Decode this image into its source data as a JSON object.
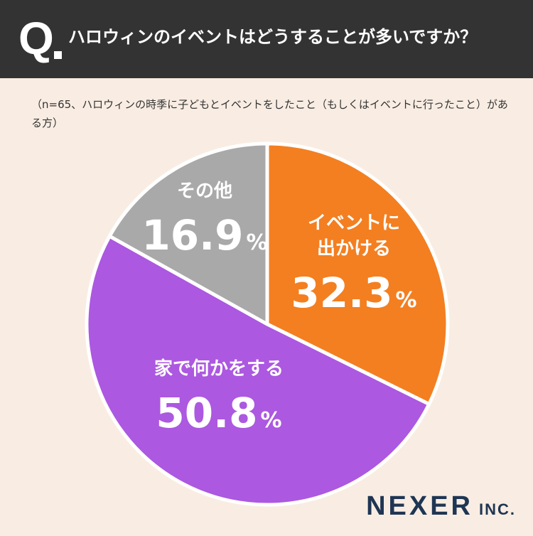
{
  "header": {
    "q_label": "Q",
    "question": "ハロウィンのイベントはどうすることが多いですか？"
  },
  "note": "（n=65、ハロウィンの時季に子どもとイベントをしたこと（もしくはイベントに行ったこと）がある方）",
  "chart_data": {
    "type": "pie",
    "title": "ハロウィンのイベントはどうすることが多いですか？",
    "slices": [
      {
        "label_lines": [
          "イベントに",
          "出かける"
        ],
        "value": 32.3,
        "value_text": "32.3",
        "color": "#f37f21"
      },
      {
        "label_lines": [
          "家で何かをする"
        ],
        "value": 50.8,
        "value_text": "50.8",
        "color": "#ac58e0"
      },
      {
        "label_lines": [
          "その他"
        ],
        "value": 16.9,
        "value_text": "16.9",
        "color": "#a9a9a9"
      }
    ],
    "unit": "%",
    "start": "top",
    "direction": "clockwise"
  },
  "brand": {
    "name": "NEXER",
    "suffix": "INC."
  },
  "colors": {
    "background": "#f9ede3",
    "header": "#333333",
    "brand": "#1f3553"
  }
}
